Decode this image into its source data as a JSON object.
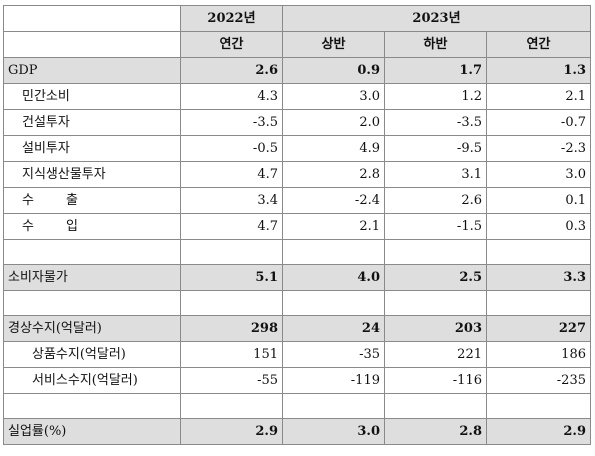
{
  "header": {
    "year_2022": "2022년",
    "year_2023": "2023년",
    "col_2022_annual": "연간",
    "col_2023_h1": "상반",
    "col_2023_h2": "하반",
    "col_2023_annual": "연간"
  },
  "rows": [
    {
      "label": "GDP",
      "values": [
        "2.6",
        "0.9",
        "1.7",
        "1.3"
      ]
    },
    {
      "label": "민간소비",
      "values": [
        "4.3",
        "3.0",
        "1.2",
        "2.1"
      ]
    },
    {
      "label": "건설투자",
      "values": [
        "-3.5",
        "2.0",
        "-3.5",
        "-0.7"
      ]
    },
    {
      "label": "설비투자",
      "values": [
        "-0.5",
        "4.9",
        "-9.5",
        "-2.3"
      ]
    },
    {
      "label": "지식생산물투자",
      "values": [
        "4.7",
        "2.8",
        "3.1",
        "3.0"
      ]
    },
    {
      "label_chars": [
        "수",
        "출"
      ],
      "values": [
        "3.4",
        "-2.4",
        "2.6",
        "0.1"
      ]
    },
    {
      "label_chars": [
        "수",
        "입"
      ],
      "values": [
        "4.7",
        "2.1",
        "-1.5",
        "0.3"
      ]
    },
    {
      "label": "소비자물가",
      "values": [
        "5.1",
        "4.0",
        "2.5",
        "3.3"
      ]
    },
    {
      "label": "경상수지(억달러)",
      "values": [
        "298",
        "24",
        "203",
        "227"
      ]
    },
    {
      "label": "상품수지(억달러)",
      "values": [
        "151",
        "-35",
        "221",
        "186"
      ]
    },
    {
      "label": "서비스수지(억달러)",
      "values": [
        "-55",
        "-119",
        "-116",
        "-235"
      ]
    },
    {
      "label": "실업률(%)",
      "values": [
        "2.9",
        "3.0",
        "2.8",
        "2.9"
      ]
    }
  ],
  "colors": {
    "shade": "#dedede",
    "grid": "#8a8a8a"
  }
}
